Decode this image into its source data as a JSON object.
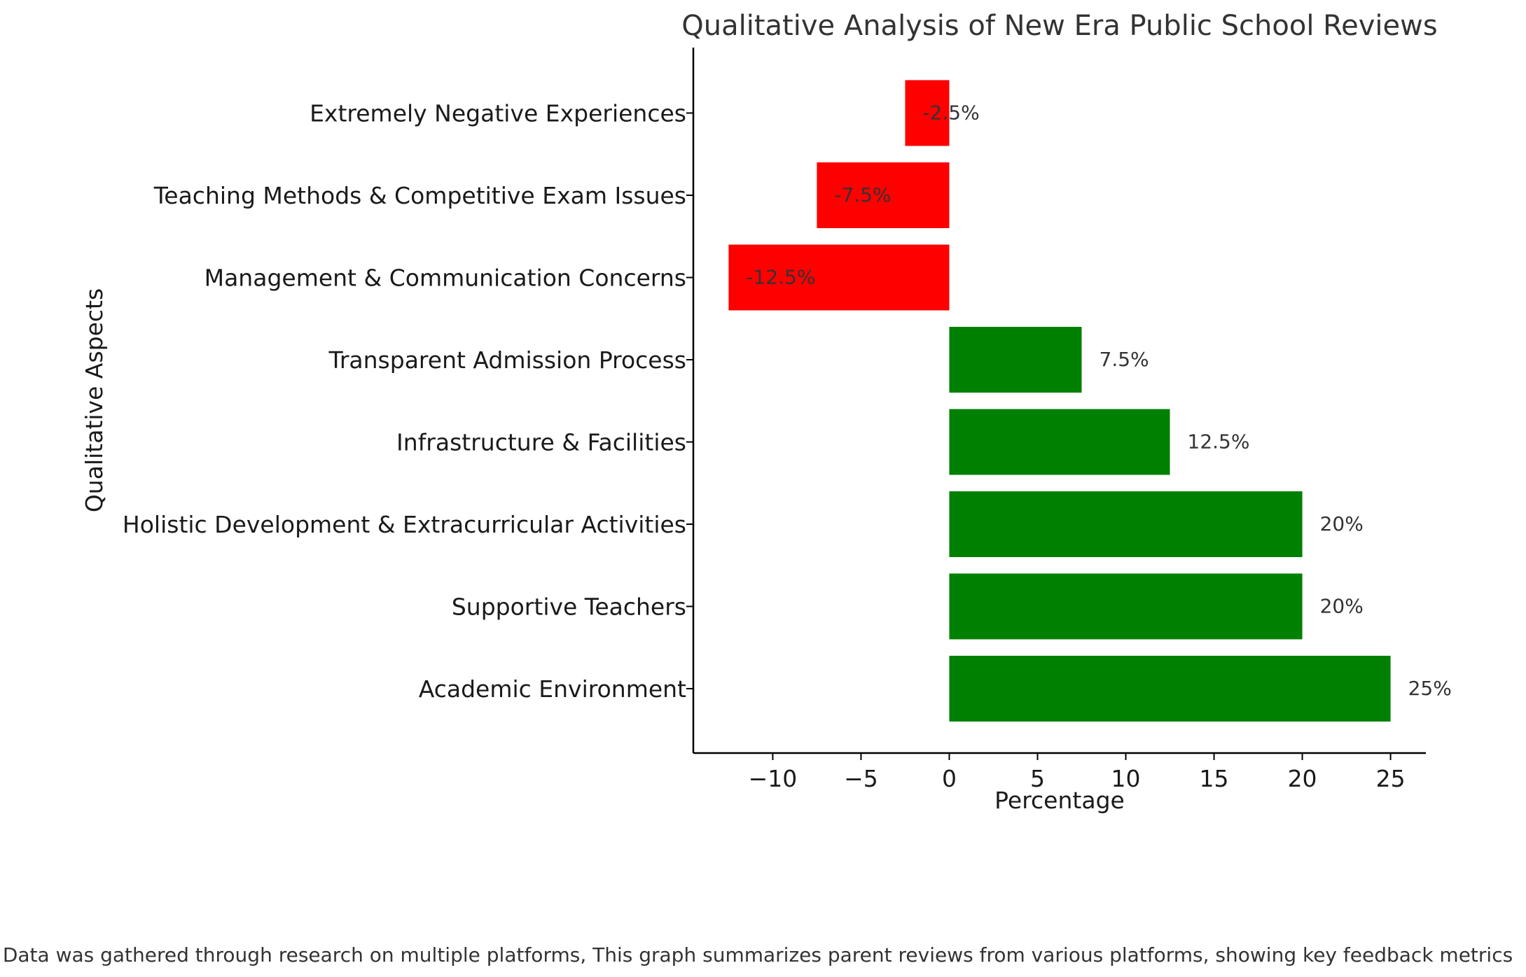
{
  "chart_data": {
    "type": "bar",
    "orientation": "horizontal",
    "title": "Qualitative Analysis of New Era Public School Reviews",
    "xlabel": "Percentage",
    "ylabel": "Qualitative Aspects",
    "xlim": [
      -14.5,
      27
    ],
    "xticks": [
      -10,
      -5,
      0,
      5,
      10,
      15,
      20,
      25
    ],
    "xtick_labels": [
      "−10",
      "−5",
      "0",
      "5",
      "10",
      "15",
      "20",
      "25"
    ],
    "grid": false,
    "legend": "none",
    "categories": [
      "Academic Environment",
      "Supportive Teachers",
      "Holistic Development & Extracurricular Activities",
      "Infrastructure & Facilities",
      "Transparent Admission Process",
      "Management & Communication Concerns",
      "Teaching Methods & Competitive Exam Issues",
      "Extremely Negative Experiences"
    ],
    "values": [
      25,
      20,
      20,
      12.5,
      7.5,
      -12.5,
      -7.5,
      -2.5
    ],
    "data_labels": [
      "25%",
      "20%",
      "20%",
      "12.5%",
      "7.5%",
      "-12.5%",
      "-7.5%",
      "-2.5%"
    ],
    "colors": {
      "positive": "#008000",
      "negative": "#ff0000"
    }
  },
  "footnote": "Data was gathered through research on multiple platforms, This graph summarizes parent reviews from various platforms, showing key feedback metrics"
}
